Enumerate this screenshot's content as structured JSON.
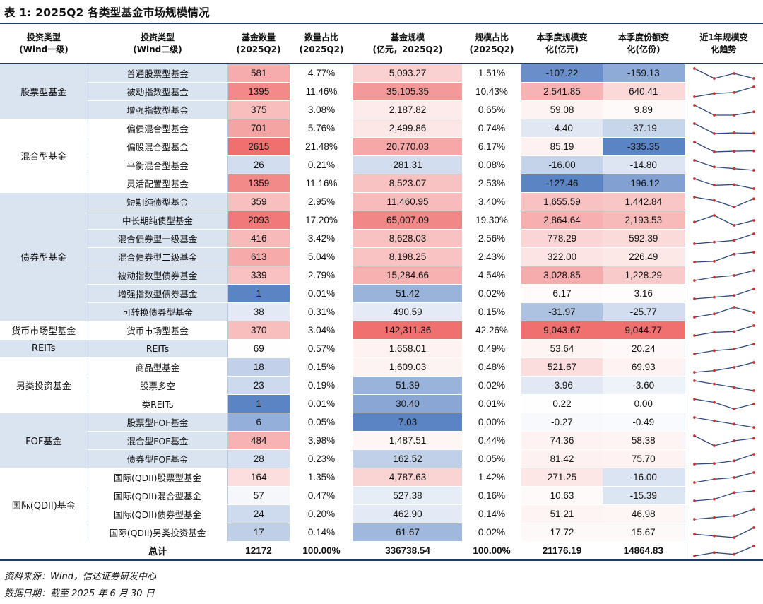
{
  "title": "表 1: 2025Q2 各类型基金市场规模情况",
  "headers": {
    "l1": [
      "投资类型",
      "(Wind一级)"
    ],
    "l2": [
      "投资类型",
      "(Wind二级)"
    ],
    "count": [
      "基金数量",
      "(2025Q2)"
    ],
    "count_pct": [
      "数量占比",
      "(2025Q2)"
    ],
    "size": [
      "基金规模",
      "(亿元，2025Q2)"
    ],
    "size_pct": [
      "规模占比",
      "(2025Q2)"
    ],
    "size_chg": [
      "本季度规模变",
      "化(亿元)"
    ],
    "share_chg": [
      "本季度份额变",
      "化(亿份)"
    ],
    "trend": [
      "近1年规模变",
      "化趋势"
    ]
  },
  "groups": [
    {
      "name": "股票型基金",
      "rows": [
        {
          "sub": "普通股票型基金",
          "count": "581",
          "count_pct": "4.77%",
          "size": "5,093.27",
          "size_pct": "1.51%",
          "size_chg": "-107.22",
          "share_chg": "-159.13",
          "trend": [
            3,
            1,
            2,
            1
          ]
        },
        {
          "sub": "被动指数型基金",
          "count": "1395",
          "count_pct": "11.46%",
          "size": "35,105.35",
          "size_pct": "10.43%",
          "size_chg": "2,541.85",
          "share_chg": "640.41",
          "trend": [
            1,
            2,
            2.3,
            4
          ]
        },
        {
          "sub": "增强指数型基金",
          "count": "375",
          "count_pct": "3.08%",
          "size": "2,187.82",
          "size_pct": "0.65%",
          "size_chg": "59.08",
          "share_chg": "9.89",
          "trend": [
            4,
            1,
            1,
            2
          ]
        }
      ]
    },
    {
      "name": "混合型基金",
      "rows": [
        {
          "sub": "偏债混合型基金",
          "count": "701",
          "count_pct": "5.76%",
          "size": "2,499.86",
          "size_pct": "0.74%",
          "size_chg": "-4.40",
          "share_chg": "-37.19",
          "trend": [
            4,
            1,
            1.2,
            1.1
          ]
        },
        {
          "sub": "偏股混合型基金",
          "count": "2615",
          "count_pct": "21.48%",
          "size": "20,770.03",
          "size_pct": "6.17%",
          "size_chg": "85.19",
          "share_chg": "-335.35",
          "trend": [
            4,
            1,
            1.2,
            1.3
          ]
        },
        {
          "sub": "平衡混合型基金",
          "count": "26",
          "count_pct": "0.21%",
          "size": "281.31",
          "size_pct": "0.08%",
          "size_chg": "-16.00",
          "share_chg": "-14.80",
          "trend": [
            4,
            2,
            1.5,
            1
          ]
        },
        {
          "sub": "灵活配置型基金",
          "count": "1359",
          "count_pct": "11.16%",
          "size": "8,523.07",
          "size_pct": "2.53%",
          "size_chg": "-127.46",
          "share_chg": "-196.12",
          "trend": [
            4,
            2,
            2.2,
            1
          ]
        }
      ]
    },
    {
      "name": "债券型基金",
      "rows": [
        {
          "sub": "短期纯债型基金",
          "count": "359",
          "count_pct": "2.95%",
          "size": "11,460.95",
          "size_pct": "3.40%",
          "size_chg": "1,655.59",
          "share_chg": "1,442.84",
          "trend": [
            4,
            3,
            1,
            3.5
          ]
        },
        {
          "sub": "中长期纯债型基金",
          "count": "2093",
          "count_pct": "17.20%",
          "size": "65,007.09",
          "size_pct": "19.30%",
          "size_chg": "2,864.64",
          "share_chg": "2,193.53",
          "trend": [
            2,
            4,
            1,
            2.5
          ]
        },
        {
          "sub": "混合债券型一级基金",
          "count": "416",
          "count_pct": "3.42%",
          "size": "8,628.03",
          "size_pct": "2.56%",
          "size_chg": "778.29",
          "share_chg": "592.39",
          "trend": [
            1,
            1.5,
            2,
            4
          ]
        },
        {
          "sub": "混合债券型二级基金",
          "count": "613",
          "count_pct": "5.04%",
          "size": "8,198.25",
          "size_pct": "2.43%",
          "size_chg": "322.00",
          "share_chg": "226.49",
          "trend": [
            1,
            1.2,
            3,
            3.5
          ]
        },
        {
          "sub": "被动指数型债券基金",
          "count": "339",
          "count_pct": "2.79%",
          "size": "15,284.66",
          "size_pct": "4.54%",
          "size_chg": "3,028.85",
          "share_chg": "1,228.29",
          "trend": [
            1,
            2,
            2.5,
            4
          ]
        },
        {
          "sub": "增强指数型债券基金",
          "count": "1",
          "count_pct": "0.01%",
          "size": "51.42",
          "size_pct": "0.02%",
          "size_chg": "6.17",
          "share_chg": "3.16",
          "trend": [
            1,
            1.5,
            2,
            4
          ]
        },
        {
          "sub": "可转换债券型基金",
          "count": "38",
          "count_pct": "0.31%",
          "size": "490.59",
          "size_pct": "0.15%",
          "size_chg": "-31.97",
          "share_chg": "-25.77",
          "trend": [
            1,
            2,
            4,
            2.5
          ]
        }
      ]
    },
    {
      "name": "货币市场型基金",
      "rows": [
        {
          "sub": "货币市场型基金",
          "count": "370",
          "count_pct": "3.04%",
          "size": "142,311.36",
          "size_pct": "42.26%",
          "size_chg": "9,043.67",
          "share_chg": "9,044.77",
          "trend": [
            1,
            2,
            2.2,
            4
          ]
        }
      ]
    },
    {
      "name": "REITs",
      "rows": [
        {
          "sub": "REITs",
          "count": "69",
          "count_pct": "0.57%",
          "size": "1,658.01",
          "size_pct": "0.49%",
          "size_chg": "53.64",
          "share_chg": "20.24",
          "trend": [
            1,
            2,
            2.5,
            4
          ]
        }
      ]
    },
    {
      "name": "另类投资基金",
      "rows": [
        {
          "sub": "商品型基金",
          "count": "18",
          "count_pct": "0.15%",
          "size": "1,609.03",
          "size_pct": "0.48%",
          "size_chg": "521.67",
          "share_chg": "69.93",
          "trend": [
            1,
            1.5,
            2.5,
            4
          ]
        },
        {
          "sub": "股票多空",
          "count": "23",
          "count_pct": "0.19%",
          "size": "51.39",
          "size_pct": "0.02%",
          "size_chg": "-3.96",
          "share_chg": "-3.60",
          "trend": [
            4,
            3,
            2,
            1
          ]
        },
        {
          "sub": "类REITs",
          "count": "1",
          "count_pct": "0.01%",
          "size": "30.40",
          "size_pct": "0.01%",
          "size_chg": "0.22",
          "share_chg": "0.00",
          "trend": [
            4,
            3,
            1,
            2.5
          ]
        }
      ]
    },
    {
      "name": "FOF基金",
      "rows": [
        {
          "sub": "股票型FOF基金",
          "count": "6",
          "count_pct": "0.05%",
          "size": "7.03",
          "size_pct": "0.00%",
          "size_chg": "-0.27",
          "share_chg": "-0.49",
          "trend": [
            4,
            3,
            2,
            1
          ]
        },
        {
          "sub": "混合型FOF基金",
          "count": "484",
          "count_pct": "3.98%",
          "size": "1,487.51",
          "size_pct": "0.44%",
          "size_chg": "74.36",
          "share_chg": "58.38",
          "trend": [
            3,
            1,
            2,
            2.5
          ]
        },
        {
          "sub": "债券型FOF基金",
          "count": "28",
          "count_pct": "0.23%",
          "size": "162.52",
          "size_pct": "0.05%",
          "size_chg": "81.42",
          "share_chg": "75.70",
          "trend": [
            1,
            1.2,
            2,
            4
          ]
        }
      ]
    },
    {
      "name": "国际(QDII)基金",
      "rows": [
        {
          "sub": "国际(QDII)股票型基金",
          "count": "164",
          "count_pct": "1.35%",
          "size": "4,787.63",
          "size_pct": "1.42%",
          "size_chg": "271.25",
          "share_chg": "-16.00",
          "trend": [
            1,
            2,
            2.5,
            4
          ]
        },
        {
          "sub": "国际(QDII)混合型基金",
          "count": "57",
          "count_pct": "0.47%",
          "size": "527.38",
          "size_pct": "0.16%",
          "size_chg": "10.63",
          "share_chg": "-15.39",
          "trend": [
            1,
            1.5,
            3.5,
            4
          ]
        },
        {
          "sub": "国际(QDII)债券型基金",
          "count": "24",
          "count_pct": "0.20%",
          "size": "462.90",
          "size_pct": "0.14%",
          "size_chg": "51.21",
          "share_chg": "46.98",
          "trend": [
            1,
            1.5,
            2,
            4
          ]
        },
        {
          "sub": "国际(QDII)另类投资基金",
          "count": "17",
          "count_pct": "0.14%",
          "size": "61.67",
          "size_pct": "0.02%",
          "size_chg": "17.72",
          "share_chg": "15.67",
          "trend": [
            2,
            1.5,
            1,
            4
          ]
        }
      ]
    }
  ],
  "total": {
    "label": "总计",
    "count": "12172",
    "count_pct": "100.00%",
    "size": "336738.54",
    "size_pct": "100.00%",
    "size_chg": "21176.19",
    "share_chg": "14864.83",
    "trend": [
      1,
      2,
      1.5,
      4
    ]
  },
  "colors": {
    "header_rule": "#1f3864",
    "band": "#dae3f0",
    "heat_high": "#f07070",
    "heat_mid": "#ffffff",
    "heat_low": "#5b84c4",
    "spark_line": "#2f4a7a",
    "spark_dot": "#d03030"
  },
  "notes": {
    "source": "资料来源：Wind，信达证券研发中心",
    "date": "数据日期：截至 2025 年 6 月 30 日"
  }
}
